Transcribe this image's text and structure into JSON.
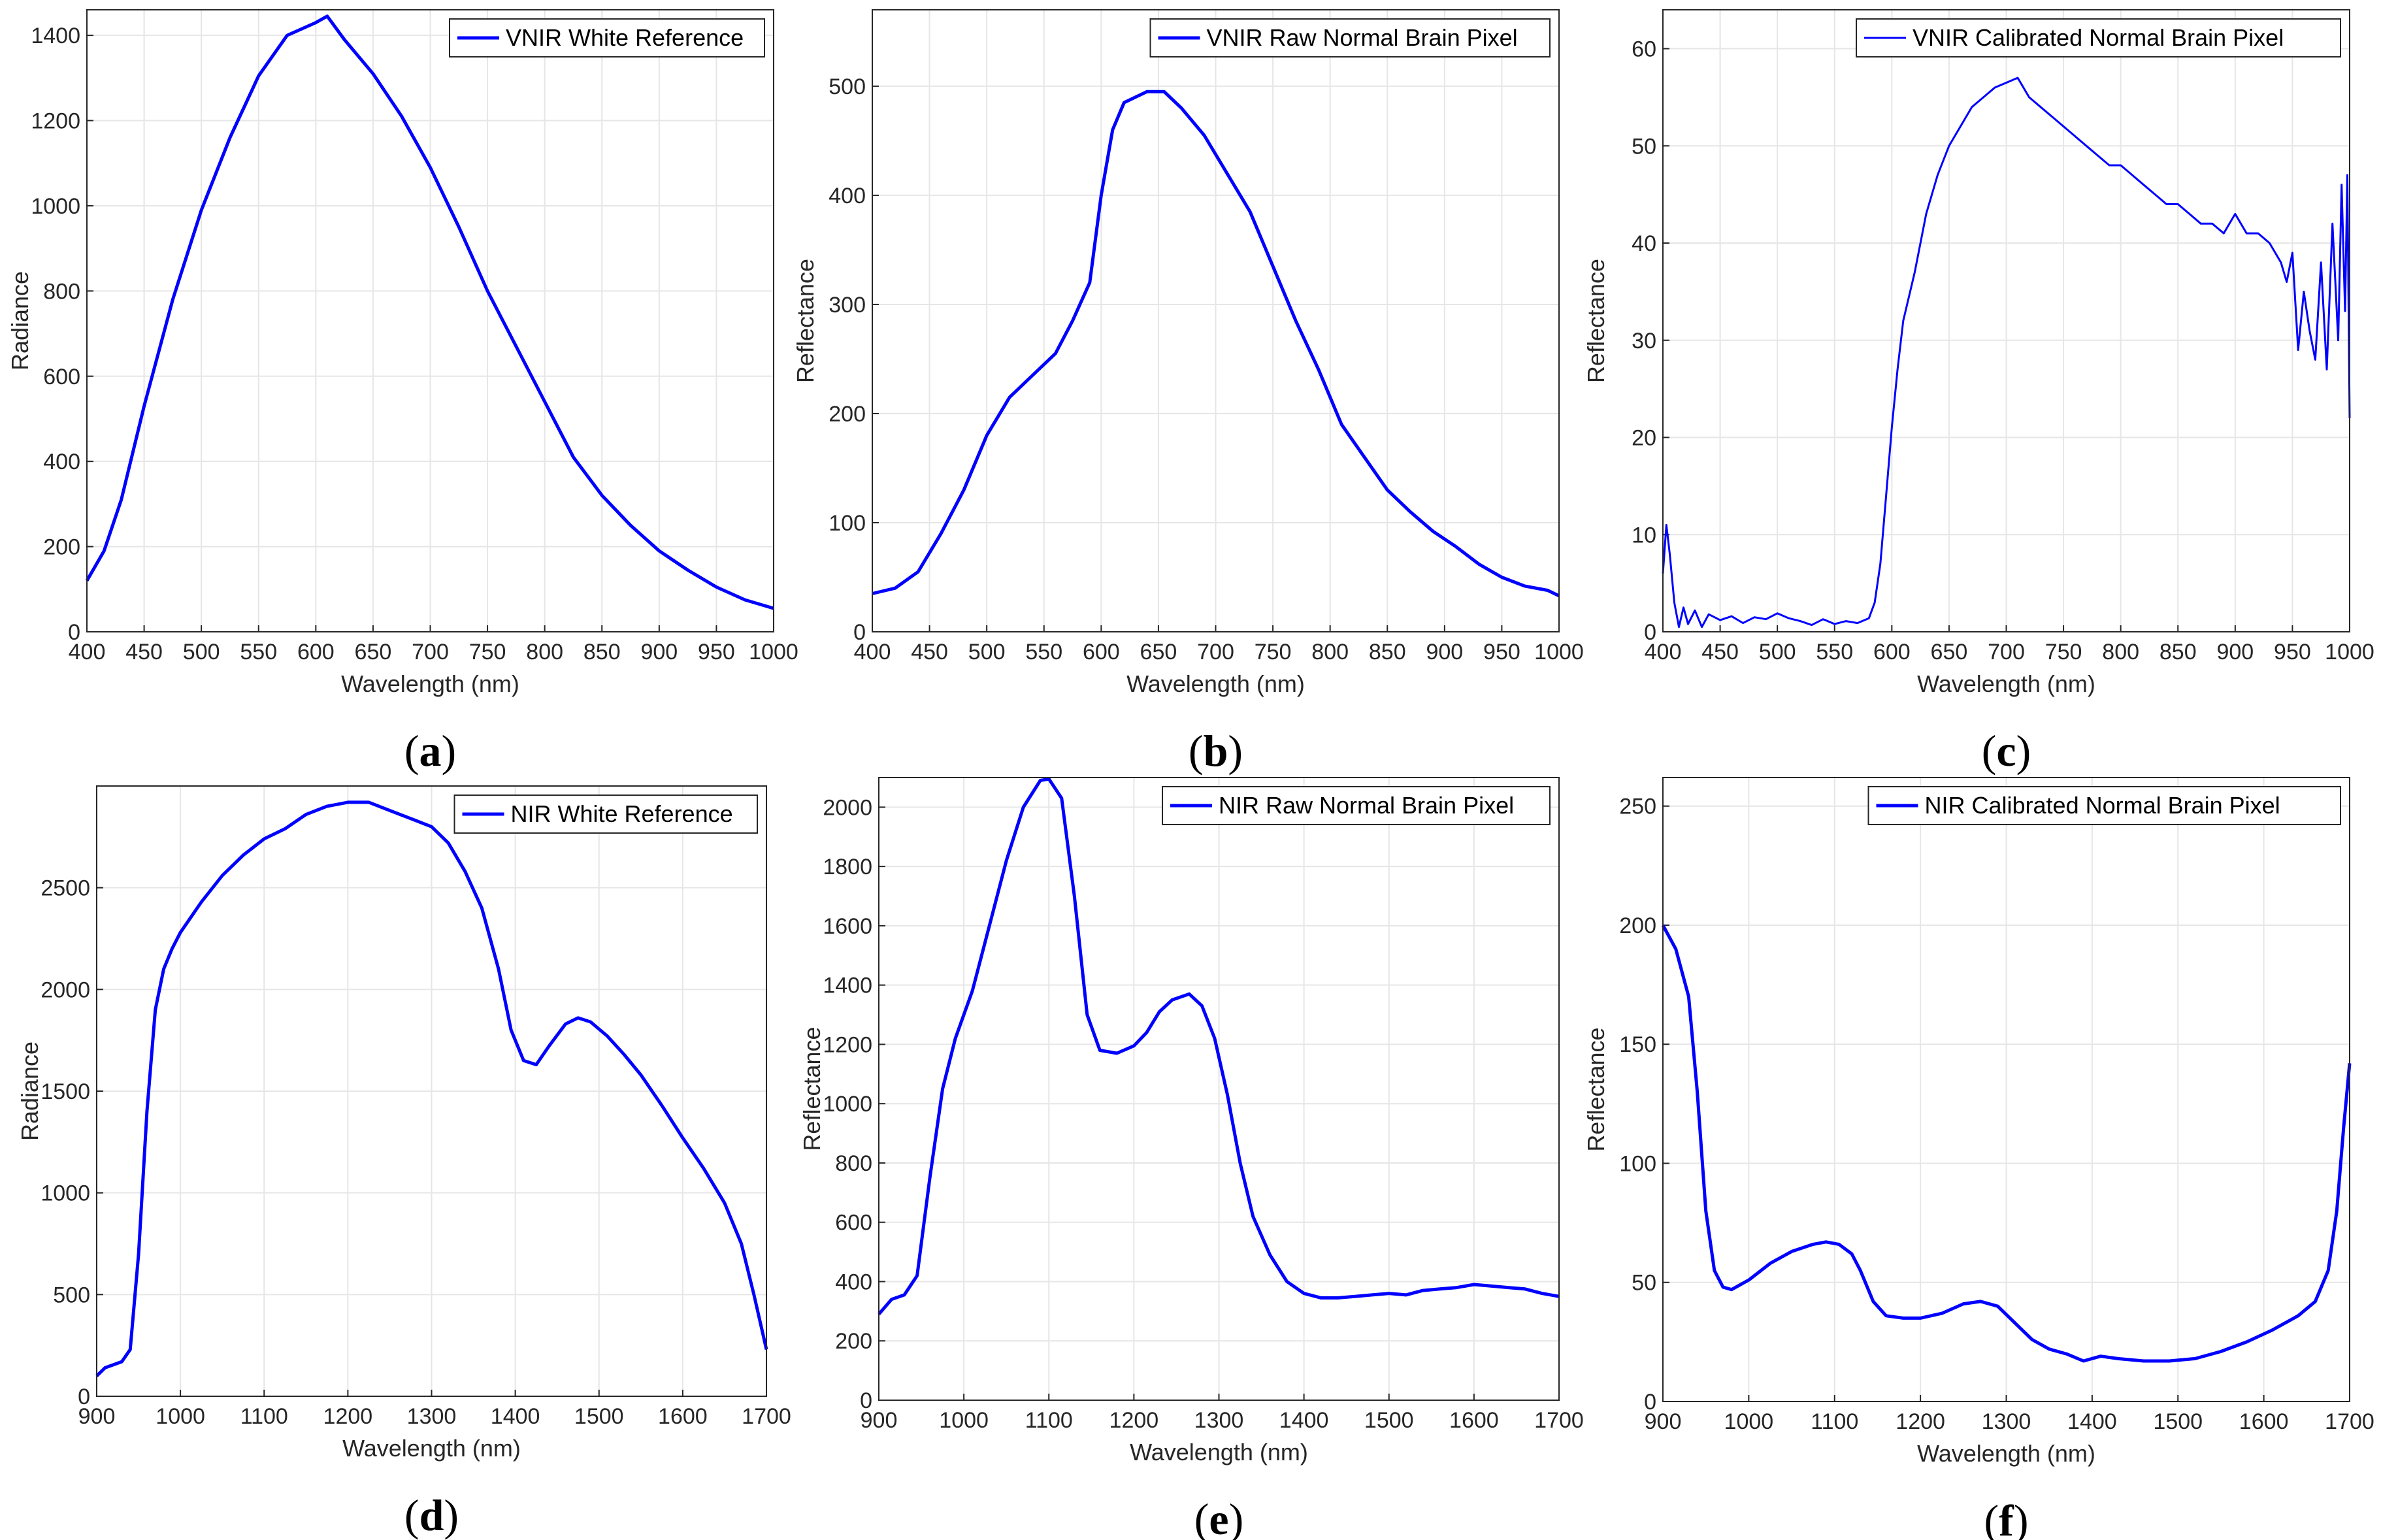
{
  "figure": {
    "series_color": "#0000ff",
    "grid_color": "#e6e6e6",
    "axis_color": "#262626"
  },
  "chart_data": [
    {
      "id": "a",
      "panel_label": "a",
      "type": "line",
      "legend": "VNIR White Reference",
      "xlabel": "Wavelength (nm)",
      "ylabel": "Radiance",
      "xlim": [
        400,
        1000
      ],
      "ylim": [
        0,
        1460
      ],
      "xticks": [
        400,
        450,
        500,
        550,
        600,
        650,
        700,
        750,
        800,
        850,
        900,
        950,
        1000
      ],
      "yticks": [
        0,
        200,
        400,
        600,
        800,
        1000,
        1200,
        1400
      ],
      "series": [
        {
          "name": "VNIR White Reference",
          "x": [
            400,
            415,
            430,
            450,
            475,
            500,
            525,
            550,
            575,
            600,
            610,
            625,
            650,
            675,
            700,
            725,
            750,
            775,
            800,
            825,
            850,
            875,
            900,
            925,
            950,
            975,
            1000
          ],
          "y": [
            120,
            190,
            310,
            530,
            780,
            990,
            1160,
            1305,
            1400,
            1430,
            1445,
            1390,
            1310,
            1210,
            1090,
            950,
            800,
            670,
            540,
            410,
            320,
            250,
            190,
            145,
            105,
            75,
            55
          ]
        }
      ]
    },
    {
      "id": "b",
      "panel_label": "b",
      "type": "line",
      "legend": "VNIR Raw Normal Brain Pixel",
      "xlabel": "Wavelength (nm)",
      "ylabel": "Reflectance",
      "xlim": [
        400,
        1000
      ],
      "ylim": [
        0,
        570
      ],
      "xticks": [
        400,
        450,
        500,
        550,
        600,
        650,
        700,
        750,
        800,
        850,
        900,
        950,
        1000
      ],
      "yticks": [
        0,
        100,
        200,
        300,
        400,
        500
      ],
      "series": [
        {
          "name": "VNIR Raw Normal Brain Pixel",
          "x": [
            400,
            420,
            440,
            460,
            480,
            500,
            520,
            540,
            560,
            575,
            590,
            600,
            610,
            620,
            640,
            655,
            670,
            690,
            710,
            730,
            750,
            770,
            790,
            810,
            830,
            850,
            870,
            890,
            910,
            930,
            950,
            970,
            990,
            1000
          ],
          "y": [
            35,
            40,
            55,
            90,
            130,
            180,
            215,
            235,
            255,
            285,
            320,
            400,
            460,
            485,
            495,
            495,
            480,
            455,
            420,
            385,
            335,
            285,
            240,
            190,
            160,
            130,
            110,
            92,
            78,
            62,
            50,
            42,
            38,
            33
          ]
        }
      ]
    },
    {
      "id": "c",
      "panel_label": "c",
      "type": "line",
      "legend": "VNIR Calibrated Normal Brain Pixel",
      "xlabel": "Wavelength (nm)",
      "ylabel": "Reflectance",
      "xlim": [
        400,
        1000
      ],
      "ylim": [
        0,
        64
      ],
      "xticks": [
        400,
        450,
        500,
        550,
        600,
        650,
        700,
        750,
        800,
        850,
        900,
        950,
        1000
      ],
      "yticks": [
        0,
        10,
        20,
        30,
        40,
        50,
        60
      ],
      "series": [
        {
          "name": "VNIR Calibrated Normal Brain Pixel",
          "x": [
            400,
            403,
            406,
            410,
            414,
            418,
            422,
            428,
            434,
            440,
            450,
            460,
            470,
            480,
            490,
            500,
            510,
            520,
            530,
            540,
            550,
            560,
            570,
            580,
            585,
            590,
            595,
            600,
            605,
            610,
            620,
            630,
            640,
            650,
            660,
            670,
            680,
            690,
            700,
            710,
            720,
            730,
            740,
            750,
            760,
            770,
            780,
            790,
            800,
            810,
            820,
            830,
            840,
            850,
            860,
            870,
            880,
            890,
            900,
            910,
            920,
            930,
            940,
            945,
            950,
            955,
            960,
            965,
            970,
            975,
            980,
            985,
            990,
            993,
            996,
            998,
            1000
          ],
          "y": [
            6,
            11,
            8,
            3,
            0.5,
            2.5,
            0.8,
            2.2,
            0.5,
            1.8,
            1.2,
            1.6,
            0.9,
            1.5,
            1.3,
            1.9,
            1.4,
            1.1,
            0.7,
            1.3,
            0.8,
            1.1,
            0.9,
            1.4,
            3,
            7,
            14,
            21,
            27,
            32,
            37,
            43,
            47,
            50,
            52,
            54,
            55,
            56,
            56.5,
            57,
            55,
            54,
            53,
            52,
            51,
            50,
            49,
            48,
            48,
            47,
            46,
            45,
            44,
            44,
            43,
            42,
            42,
            41,
            43,
            41,
            41,
            40,
            38,
            36,
            39,
            29,
            35,
            31,
            28,
            38,
            27,
            42,
            30,
            46,
            33,
            47,
            22
          ]
        }
      ]
    },
    {
      "id": "d",
      "panel_label": "d",
      "type": "line",
      "legend": "NIR White Reference",
      "xlabel": "Wavelength (nm)",
      "ylabel": "Radiance",
      "xlim": [
        900,
        1700
      ],
      "ylim": [
        0,
        3000
      ],
      "xticks": [
        900,
        1000,
        1100,
        1200,
        1300,
        1400,
        1500,
        1600,
        1700
      ],
      "yticks": [
        0,
        500,
        1000,
        1500,
        2000,
        2500
      ],
      "series": [
        {
          "name": "NIR White Reference",
          "x": [
            900,
            910,
            930,
            940,
            950,
            960,
            970,
            980,
            990,
            1000,
            1025,
            1050,
            1075,
            1100,
            1125,
            1150,
            1175,
            1200,
            1225,
            1250,
            1275,
            1300,
            1320,
            1340,
            1360,
            1380,
            1395,
            1410,
            1425,
            1440,
            1460,
            1475,
            1490,
            1510,
            1530,
            1550,
            1575,
            1600,
            1625,
            1650,
            1670,
            1685,
            1700
          ],
          "y": [
            100,
            140,
            170,
            230,
            700,
            1400,
            1900,
            2100,
            2200,
            2280,
            2430,
            2560,
            2660,
            2740,
            2790,
            2860,
            2900,
            2920,
            2920,
            2880,
            2840,
            2800,
            2720,
            2580,
            2400,
            2100,
            1800,
            1650,
            1630,
            1720,
            1830,
            1860,
            1840,
            1770,
            1680,
            1580,
            1430,
            1270,
            1120,
            950,
            750,
            500,
            230
          ]
        }
      ]
    },
    {
      "id": "e",
      "panel_label": "e",
      "type": "line",
      "legend": "NIR Raw Normal Brain Pixel",
      "xlabel": "Wavelength (nm)",
      "ylabel": "Reflectance",
      "xlim": [
        900,
        1700
      ],
      "ylim": [
        0,
        2100
      ],
      "xticks": [
        900,
        1000,
        1100,
        1200,
        1300,
        1400,
        1500,
        1600,
        1700
      ],
      "yticks": [
        0,
        200,
        400,
        600,
        800,
        1000,
        1200,
        1400,
        1600,
        1800,
        2000
      ],
      "series": [
        {
          "name": "NIR Raw Normal Brain Pixel",
          "x": [
            900,
            915,
            930,
            945,
            960,
            975,
            990,
            1010,
            1030,
            1050,
            1070,
            1090,
            1100,
            1115,
            1130,
            1145,
            1160,
            1180,
            1200,
            1215,
            1230,
            1245,
            1265,
            1280,
            1295,
            1310,
            1325,
            1340,
            1360,
            1380,
            1400,
            1420,
            1440,
            1460,
            1480,
            1500,
            1520,
            1540,
            1560,
            1580,
            1600,
            1620,
            1640,
            1660,
            1680,
            1700
          ],
          "y": [
            290,
            340,
            355,
            420,
            750,
            1050,
            1220,
            1380,
            1600,
            1820,
            2000,
            2090,
            2095,
            2030,
            1700,
            1300,
            1180,
            1170,
            1195,
            1240,
            1310,
            1350,
            1370,
            1330,
            1220,
            1030,
            800,
            620,
            490,
            400,
            360,
            345,
            345,
            350,
            355,
            360,
            355,
            370,
            375,
            380,
            390,
            385,
            380,
            375,
            360,
            350
          ]
        }
      ]
    },
    {
      "id": "f",
      "panel_label": "f",
      "type": "line",
      "legend": "NIR Calibrated Normal Brain Pixel",
      "xlabel": "Wavelength (nm)",
      "ylabel": "Reflectance",
      "xlim": [
        900,
        1700
      ],
      "ylim": [
        0,
        262
      ],
      "xticks": [
        900,
        1000,
        1100,
        1200,
        1300,
        1400,
        1500,
        1600,
        1700
      ],
      "yticks": [
        0,
        50,
        100,
        150,
        200,
        250
      ],
      "series": [
        {
          "name": "NIR Calibrated Normal Brain Pixel",
          "x": [
            900,
            915,
            930,
            940,
            950,
            960,
            970,
            980,
            1000,
            1025,
            1050,
            1075,
            1090,
            1105,
            1120,
            1130,
            1145,
            1160,
            1180,
            1200,
            1225,
            1250,
            1270,
            1290,
            1310,
            1330,
            1350,
            1370,
            1390,
            1410,
            1430,
            1460,
            1490,
            1520,
            1550,
            1580,
            1610,
            1640,
            1660,
            1675,
            1685,
            1693,
            1700
          ],
          "y": [
            200,
            190,
            170,
            130,
            80,
            55,
            48,
            47,
            51,
            58,
            63,
            66,
            67,
            66,
            62,
            55,
            42,
            36,
            35,
            35,
            37,
            41,
            42,
            40,
            33,
            26,
            22,
            20,
            17,
            19,
            18,
            17,
            17,
            18,
            21,
            25,
            30,
            36,
            42,
            55,
            80,
            115,
            142
          ]
        }
      ]
    }
  ]
}
